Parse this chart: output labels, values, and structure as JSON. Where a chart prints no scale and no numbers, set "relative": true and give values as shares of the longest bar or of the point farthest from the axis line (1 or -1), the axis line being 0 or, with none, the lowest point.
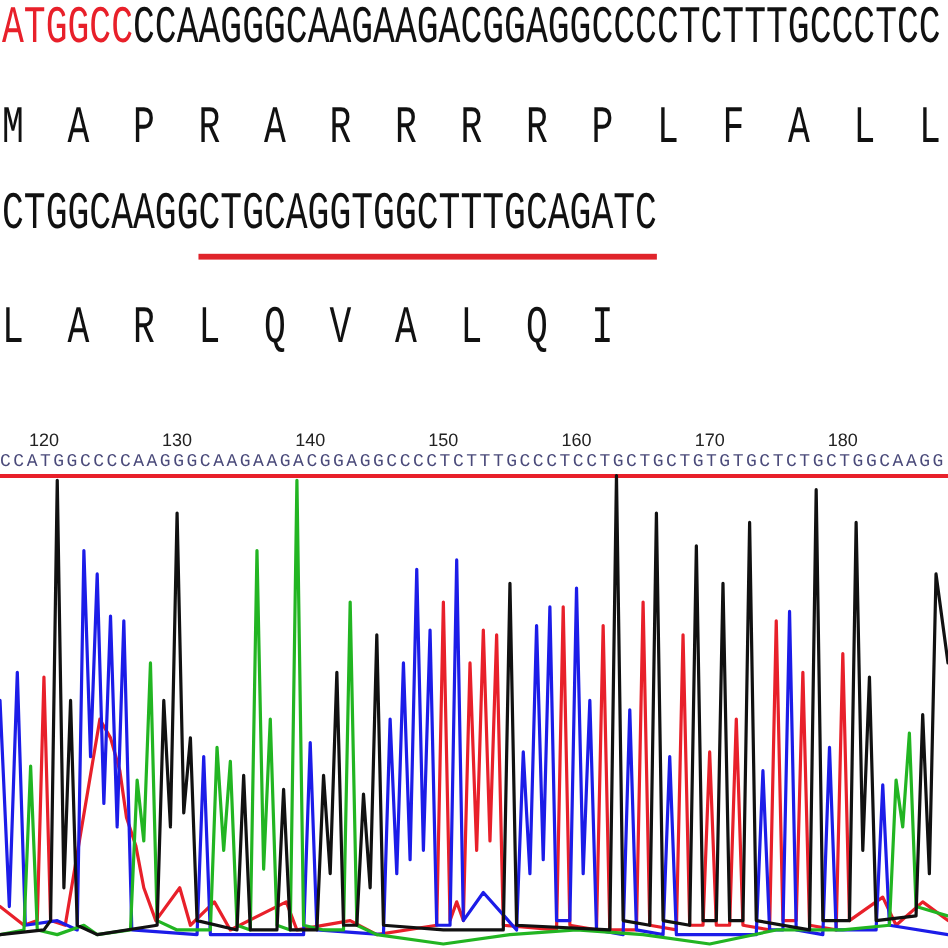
{
  "chart_data": {
    "type": "line",
    "relative": true,
    "marker": "none",
    "line_style": "solid",
    "annotations": [
      "ATGGCC",
      "CCAAGGGCAAGAAGACGGAGGCCCCTCTTTGCCCTCC",
      "M A P R A R R R R P L F A L L",
      "CTGGCAAGG",
      "CTGCAGGTGGCTTTGCAGATC",
      "L A R L Q V A L Q I",
      "CCATGGCCCCAAGGGCAAGAAGACGGAGGCCCCTCTTTGCCCTCCTGCTGCTGTGTGCTCTGCTGGCAAGG"
    ],
    "xlim": [
      116.7,
      187.9
    ],
    "xticks": [
      120,
      130,
      140,
      150,
      160,
      170,
      180
    ],
    "series": [
      {
        "color": "#111111",
        "x": [
          116.7,
          120,
          120.5,
          121,
          121.5,
          122,
          122.5,
          124,
          128.5,
          129,
          129.5,
          130,
          130.5,
          131,
          131.5,
          134.5,
          135,
          135.5,
          137.5,
          138,
          138.5,
          140.5,
          141,
          141.5,
          142,
          142.5,
          143.5,
          144,
          144.5,
          145,
          145.5,
          150,
          154.5,
          155,
          155.5,
          162.5,
          163,
          163.5,
          165.5,
          166,
          166.5,
          168.5,
          169,
          169.5,
          170.5,
          171,
          171.5,
          172.5,
          173,
          173.5,
          177.5,
          178,
          178.5,
          180.5,
          181,
          181.5,
          182,
          182.5,
          185.5,
          186,
          186.5,
          187,
          187.9
        ],
        "values": [
          0.02,
          0.03,
          0.05,
          0.99,
          0.12,
          0.52,
          0.04,
          0.02,
          0.04,
          0.52,
          0.25,
          0.92,
          0.28,
          0.44,
          0.05,
          0.03,
          0.36,
          0.03,
          0.03,
          0.33,
          0.03,
          0.03,
          0.36,
          0.15,
          0.58,
          0.04,
          0.04,
          0.32,
          0.12,
          0.66,
          0.04,
          0.03,
          0.03,
          0.77,
          0.04,
          0.03,
          1.0,
          0.05,
          0.04,
          0.92,
          0.05,
          0.04,
          0.85,
          0.05,
          0.05,
          0.77,
          0.05,
          0.05,
          0.9,
          0.05,
          0.03,
          0.97,
          0.05,
          0.05,
          0.9,
          0.2,
          0.57,
          0.05,
          0.06,
          0.49,
          0.15,
          0.79,
          0.6
        ]
      },
      {
        "color": "#22b522",
        "x": [
          116.7,
          118.5,
          119,
          119.5,
          121,
          123,
          124,
          126.5,
          127,
          127.5,
          128,
          128.5,
          130,
          132.5,
          133,
          133.5,
          134,
          134.5,
          135.5,
          136,
          136.5,
          137,
          137.5,
          138.5,
          139,
          139.5,
          141,
          142.5,
          143,
          143.5,
          145,
          150,
          155,
          160,
          165,
          170,
          175,
          180,
          183.5,
          184,
          184.5,
          185,
          185.5,
          187.9
        ],
        "values": [
          0.02,
          0.03,
          0.38,
          0.03,
          0.02,
          0.04,
          0.02,
          0.03,
          0.35,
          0.22,
          0.6,
          0.05,
          0.03,
          0.03,
          0.42,
          0.2,
          0.39,
          0.04,
          0.03,
          0.84,
          0.16,
          0.48,
          0.04,
          0.03,
          0.99,
          0.04,
          0.03,
          0.03,
          0.73,
          0.04,
          0.02,
          0,
          0.02,
          0.03,
          0.02,
          0,
          0.03,
          0.03,
          0.04,
          0.35,
          0.25,
          0.45,
          0.08,
          0.06
        ]
      },
      {
        "color": "#1c1ce8",
        "x": [
          116.7,
          117.4,
          118,
          118.6,
          121,
          122.5,
          123,
          123.5,
          124,
          124.5,
          125,
          125.5,
          126,
          126.6,
          131.5,
          132,
          132.5,
          139.5,
          140,
          140.5,
          145.5,
          146,
          146.5,
          147,
          147.5,
          148,
          148.5,
          149,
          149.5,
          150.5,
          151,
          151.5,
          153,
          155.5,
          156,
          156.5,
          157,
          157.5,
          158,
          158.5,
          159.5,
          160,
          160.5,
          161,
          161.5,
          163.5,
          164,
          164.5,
          166.5,
          167,
          167.5,
          173.5,
          174,
          174.5,
          175.5,
          176,
          176.5,
          178.5,
          179,
          179.5,
          182.5,
          183,
          183.5,
          187.9
        ],
        "values": [
          0.52,
          0.08,
          0.58,
          0.04,
          0.05,
          0.03,
          0.84,
          0.4,
          0.79,
          0.3,
          0.7,
          0.25,
          0.69,
          0.03,
          0.02,
          0.4,
          0.02,
          0.02,
          0.43,
          0.03,
          0.02,
          0.48,
          0.15,
          0.6,
          0.18,
          0.8,
          0.2,
          0.67,
          0.04,
          0.04,
          0.82,
          0.05,
          0.11,
          0.03,
          0.41,
          0.15,
          0.68,
          0.18,
          0.72,
          0.05,
          0.05,
          0.76,
          0.15,
          0.52,
          0.03,
          0.02,
          0.5,
          0.03,
          0.02,
          0.4,
          0.02,
          0.02,
          0.37,
          0.03,
          0.03,
          0.71,
          0.03,
          0.02,
          0.42,
          0.03,
          0.03,
          0.34,
          0.04,
          0.02
        ]
      },
      {
        "color": "#e8202a",
        "x": [
          116.7,
          118.5,
          119.5,
          120,
          120.5,
          121.6,
          124.2,
          125,
          125.7,
          126.2,
          126.9,
          127.5,
          128.4,
          130.2,
          131,
          132.8,
          134,
          138.2,
          139,
          143,
          145,
          149.5,
          150,
          150.5,
          151,
          151.5,
          152,
          152.5,
          153,
          153.5,
          154,
          154.5,
          158.5,
          159,
          159.5,
          161.5,
          162,
          162.5,
          164.5,
          165,
          165.5,
          167.5,
          168,
          168.5,
          169.5,
          170,
          170.5,
          171.5,
          172,
          172.5,
          174.5,
          175,
          175.5,
          176.5,
          177,
          177.5,
          179.5,
          180,
          180.5,
          183,
          184,
          186,
          187.9
        ],
        "values": [
          0.08,
          0.04,
          0.05,
          0.57,
          0.05,
          0.04,
          0.48,
          0.44,
          0.37,
          0.27,
          0.21,
          0.12,
          0.05,
          0.12,
          0.04,
          0.09,
          0.03,
          0.09,
          0.03,
          0.05,
          0.02,
          0.04,
          0.73,
          0.05,
          0.09,
          0.05,
          0.6,
          0.2,
          0.67,
          0.22,
          0.66,
          0.04,
          0.03,
          0.72,
          0.04,
          0.03,
          0.68,
          0.03,
          0.03,
          0.73,
          0.04,
          0.03,
          0.66,
          0.04,
          0.04,
          0.41,
          0.04,
          0.04,
          0.48,
          0.04,
          0.03,
          0.69,
          0.05,
          0.05,
          0.58,
          0.04,
          0.03,
          0.62,
          0.05,
          0.1,
          0.04,
          0.09,
          0.05
        ]
      }
    ]
  }
}
